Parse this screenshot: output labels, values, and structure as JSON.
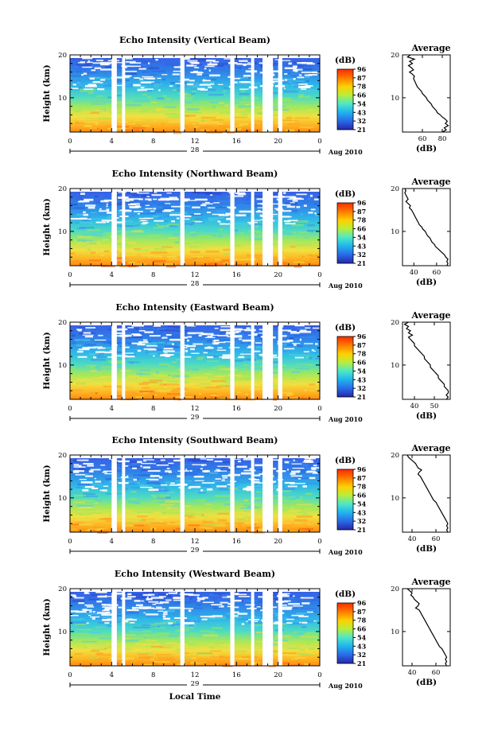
{
  "figure": {
    "month_label": "Aug 2010",
    "xlabel": "Local Time"
  },
  "colorbar": {
    "unit_label": "(dB)",
    "ticks": [
      "96",
      "87",
      "78",
      "66",
      "54",
      "43",
      "32",
      "21"
    ],
    "colors": [
      "#ff2a00",
      "#ff7a00",
      "#ffd000",
      "#b8ee3a",
      "#4ee8c8",
      "#20b4ee",
      "#2a6ae8",
      "#2626a8"
    ]
  },
  "chart_data": [
    {
      "type": "heatmap",
      "title": "Echo Intensity (Vertical Beam)",
      "ylabel": "Height (km)",
      "ylim": [
        2,
        20
      ],
      "y_ticks": [
        "20",
        "10"
      ],
      "xlim": [
        0,
        24
      ],
      "x_ticks": [
        "0",
        "4",
        "8",
        "12",
        "16",
        "20",
        "0"
      ],
      "day_label": "28",
      "colorbar_range": [
        21,
        96
      ],
      "gaps_hours": [
        [
          4.0,
          4.5
        ],
        [
          5.0,
          5.3
        ],
        [
          10.6,
          11.0
        ],
        [
          15.4,
          15.8
        ],
        [
          17.4,
          17.7
        ],
        [
          18.5,
          19.5
        ],
        [
          20.0,
          20.4
        ]
      ],
      "profile": {
        "title": "Average",
        "xlabel": "(dB)",
        "x_ticks": [
          "60",
          "80"
        ],
        "xlim": [
          40,
          88
        ],
        "y_ticks": [
          "20",
          "10"
        ],
        "points": [
          [
            48,
            20
          ],
          [
            45,
            19.5
          ],
          [
            52,
            19
          ],
          [
            47,
            18.5
          ],
          [
            50,
            18
          ],
          [
            46,
            17.5
          ],
          [
            49,
            17
          ],
          [
            51,
            16.5
          ],
          [
            47,
            16
          ],
          [
            50,
            15.5
          ],
          [
            52,
            15
          ],
          [
            51,
            14.5
          ],
          [
            52,
            14
          ],
          [
            53,
            13.5
          ],
          [
            54,
            13
          ],
          [
            55,
            12.5
          ],
          [
            57,
            12
          ],
          [
            59,
            11.5
          ],
          [
            60,
            11
          ],
          [
            62,
            10.5
          ],
          [
            64,
            10
          ],
          [
            65,
            9.5
          ],
          [
            67,
            9
          ],
          [
            69,
            8.5
          ],
          [
            70,
            8
          ],
          [
            72,
            7.5
          ],
          [
            74,
            7
          ],
          [
            75,
            6.5
          ],
          [
            78,
            6
          ],
          [
            80,
            5.5
          ],
          [
            83,
            5
          ],
          [
            85,
            4.5
          ],
          [
            83,
            4
          ],
          [
            86,
            3.5
          ],
          [
            82,
            3
          ],
          [
            84,
            2.5
          ],
          [
            80,
            2
          ]
        ]
      }
    },
    {
      "type": "heatmap",
      "title": "Echo Intensity (Northward Beam)",
      "ylabel": "Height (km)",
      "ylim": [
        2,
        20
      ],
      "y_ticks": [
        "20",
        "10"
      ],
      "xlim": [
        0,
        24
      ],
      "x_ticks": [
        "0",
        "4",
        "8",
        "12",
        "16",
        "20",
        "0"
      ],
      "day_label": "28",
      "colorbar_range": [
        21,
        96
      ],
      "gaps_hours": [
        [
          4.0,
          4.5
        ],
        [
          5.0,
          5.3
        ],
        [
          10.6,
          11.0
        ],
        [
          15.4,
          15.8
        ],
        [
          17.4,
          17.7
        ],
        [
          18.5,
          19.5
        ],
        [
          20.0,
          20.4
        ]
      ],
      "profile": {
        "title": "Average",
        "xlabel": "(dB)",
        "x_ticks": [
          "40",
          "60"
        ],
        "xlim": [
          30,
          72
        ],
        "y_ticks": [
          "20",
          "10"
        ],
        "points": [
          [
            32,
            20
          ],
          [
            33,
            19.5
          ],
          [
            32,
            19
          ],
          [
            33,
            18.5
          ],
          [
            34,
            18
          ],
          [
            35,
            17.5
          ],
          [
            33,
            17
          ],
          [
            35,
            16.5
          ],
          [
            37,
            16
          ],
          [
            36,
            15.5
          ],
          [
            38,
            15
          ],
          [
            39,
            14.5
          ],
          [
            40,
            14
          ],
          [
            41,
            13.5
          ],
          [
            42,
            13
          ],
          [
            43,
            12.5
          ],
          [
            44,
            12
          ],
          [
            45,
            11.5
          ],
          [
            47,
            11
          ],
          [
            48,
            10.5
          ],
          [
            50,
            10
          ],
          [
            51,
            9.5
          ],
          [
            52,
            9
          ],
          [
            54,
            8.5
          ],
          [
            55,
            8
          ],
          [
            56,
            7.5
          ],
          [
            58,
            7
          ],
          [
            59,
            6.5
          ],
          [
            61,
            6
          ],
          [
            63,
            5.5
          ],
          [
            65,
            5
          ],
          [
            67,
            4.5
          ],
          [
            68,
            4
          ],
          [
            70,
            3.5
          ],
          [
            69,
            3
          ],
          [
            70,
            2.5
          ],
          [
            69,
            2
          ]
        ]
      }
    },
    {
      "type": "heatmap",
      "title": "Echo Intensity (Eastward Beam)",
      "ylabel": "Height (km)",
      "ylim": [
        2,
        20
      ],
      "y_ticks": [
        "20",
        "10"
      ],
      "xlim": [
        0,
        24
      ],
      "x_ticks": [
        "0",
        "4",
        "8",
        "12",
        "16",
        "20",
        "0"
      ],
      "day_label": "29",
      "colorbar_range": [
        21,
        96
      ],
      "gaps_hours": [
        [
          4.0,
          4.5
        ],
        [
          5.0,
          5.3
        ],
        [
          10.6,
          11.0
        ],
        [
          15.4,
          15.8
        ],
        [
          17.4,
          17.7
        ],
        [
          18.5,
          19.5
        ],
        [
          20.0,
          20.4
        ]
      ],
      "profile": {
        "title": "Average",
        "xlabel": "(dB)",
        "x_ticks": [
          "40",
          "50"
        ],
        "xlim": [
          34,
          58
        ],
        "y_ticks": [
          "20",
          "10"
        ],
        "points": [
          [
            37,
            20
          ],
          [
            35,
            19.5
          ],
          [
            37,
            19
          ],
          [
            36,
            18.5
          ],
          [
            38,
            18
          ],
          [
            37,
            17.5
          ],
          [
            39,
            17
          ],
          [
            37,
            16.5
          ],
          [
            38,
            16
          ],
          [
            39,
            15.5
          ],
          [
            40,
            15
          ],
          [
            40,
            14.5
          ],
          [
            41,
            14
          ],
          [
            42,
            13.5
          ],
          [
            43,
            13
          ],
          [
            44,
            12.5
          ],
          [
            45,
            12
          ],
          [
            45,
            11.5
          ],
          [
            46,
            11
          ],
          [
            47,
            10.5
          ],
          [
            48,
            10
          ],
          [
            48,
            9.5
          ],
          [
            49,
            9
          ],
          [
            50,
            8.5
          ],
          [
            51,
            8
          ],
          [
            52,
            7.5
          ],
          [
            52,
            7
          ],
          [
            53,
            6.5
          ],
          [
            54,
            6
          ],
          [
            55,
            5.5
          ],
          [
            55,
            5
          ],
          [
            56,
            4.5
          ],
          [
            57,
            4
          ],
          [
            57,
            3.5
          ],
          [
            56,
            3
          ],
          [
            57,
            2.5
          ],
          [
            56,
            2
          ]
        ]
      }
    },
    {
      "type": "heatmap",
      "title": "Echo Intensity (Southward Beam)",
      "ylabel": "Height (km)",
      "ylim": [
        2,
        20
      ],
      "y_ticks": [
        "20",
        "10"
      ],
      "xlim": [
        0,
        24
      ],
      "x_ticks": [
        "0",
        "4",
        "8",
        "12",
        "16",
        "20",
        "0"
      ],
      "day_label": "29",
      "colorbar_range": [
        21,
        96
      ],
      "gaps_hours": [
        [
          4.0,
          4.5
        ],
        [
          5.0,
          5.3
        ],
        [
          10.6,
          11.0
        ],
        [
          15.4,
          15.8
        ],
        [
          17.4,
          17.7
        ],
        [
          18.5,
          19.5
        ],
        [
          20.0,
          20.4
        ]
      ],
      "profile": {
        "title": "Average",
        "xlabel": "(dB)",
        "x_ticks": [
          "40",
          "60"
        ],
        "xlim": [
          32,
          72
        ],
        "y_ticks": [
          "20",
          "10"
        ],
        "points": [
          [
            36,
            20
          ],
          [
            37,
            19.5
          ],
          [
            39,
            19
          ],
          [
            41,
            18.5
          ],
          [
            43,
            18
          ],
          [
            44,
            17.5
          ],
          [
            45,
            17
          ],
          [
            48,
            16.5
          ],
          [
            46,
            16
          ],
          [
            45,
            15.5
          ],
          [
            47,
            15
          ],
          [
            48,
            14.5
          ],
          [
            49,
            14
          ],
          [
            50,
            13.5
          ],
          [
            51,
            13
          ],
          [
            52,
            12.5
          ],
          [
            53,
            12
          ],
          [
            54,
            11.5
          ],
          [
            55,
            11
          ],
          [
            56,
            10.5
          ],
          [
            57,
            10
          ],
          [
            58,
            9.5
          ],
          [
            60,
            9
          ],
          [
            61,
            8.5
          ],
          [
            62,
            8
          ],
          [
            63,
            7.5
          ],
          [
            64,
            7
          ],
          [
            65,
            6.5
          ],
          [
            66,
            6
          ],
          [
            67,
            5.5
          ],
          [
            68,
            5
          ],
          [
            69,
            4.5
          ],
          [
            70,
            4
          ],
          [
            69,
            3.5
          ],
          [
            70,
            3
          ],
          [
            69,
            2.5
          ],
          [
            70,
            2
          ]
        ]
      }
    },
    {
      "type": "heatmap",
      "title": "Echo Intensity (Westward Beam)",
      "ylabel": "Height (km)",
      "ylim": [
        2,
        20
      ],
      "y_ticks": [
        "20",
        "10"
      ],
      "xlim": [
        0,
        24
      ],
      "x_ticks": [
        "0",
        "4",
        "8",
        "12",
        "16",
        "20",
        "0"
      ],
      "day_label": "29",
      "colorbar_range": [
        21,
        96
      ],
      "gaps_hours": [
        [
          4.0,
          4.5
        ],
        [
          5.0,
          5.3
        ],
        [
          10.6,
          11.0
        ],
        [
          15.4,
          15.8
        ],
        [
          17.4,
          17.7
        ],
        [
          18.5,
          19.5
        ],
        [
          20.0,
          20.4
        ]
      ],
      "profile": {
        "title": "Average",
        "xlabel": "(dB)",
        "x_ticks": [
          "40",
          "60"
        ],
        "xlim": [
          32,
          72
        ],
        "y_ticks": [
          "20",
          "10"
        ],
        "points": [
          [
            36,
            20
          ],
          [
            38,
            19.5
          ],
          [
            40,
            19
          ],
          [
            39,
            18.5
          ],
          [
            41,
            18
          ],
          [
            42,
            17.5
          ],
          [
            44,
            17
          ],
          [
            46,
            16.5
          ],
          [
            45,
            16
          ],
          [
            43,
            15.5
          ],
          [
            46,
            15
          ],
          [
            47,
            14.5
          ],
          [
            48,
            14
          ],
          [
            49,
            13.5
          ],
          [
            50,
            13
          ],
          [
            51,
            12.5
          ],
          [
            52,
            12
          ],
          [
            53,
            11.5
          ],
          [
            54,
            11
          ],
          [
            55,
            10.5
          ],
          [
            56,
            10
          ],
          [
            57,
            9.5
          ],
          [
            58,
            9
          ],
          [
            59,
            8.5
          ],
          [
            60,
            8
          ],
          [
            61,
            7.5
          ],
          [
            62,
            7
          ],
          [
            63,
            6.5
          ],
          [
            65,
            6
          ],
          [
            66,
            5.5
          ],
          [
            67,
            5
          ],
          [
            68,
            4.5
          ],
          [
            69,
            4
          ],
          [
            68,
            3.5
          ],
          [
            69,
            3
          ],
          [
            68,
            2.5
          ],
          [
            69,
            2
          ]
        ]
      }
    }
  ]
}
